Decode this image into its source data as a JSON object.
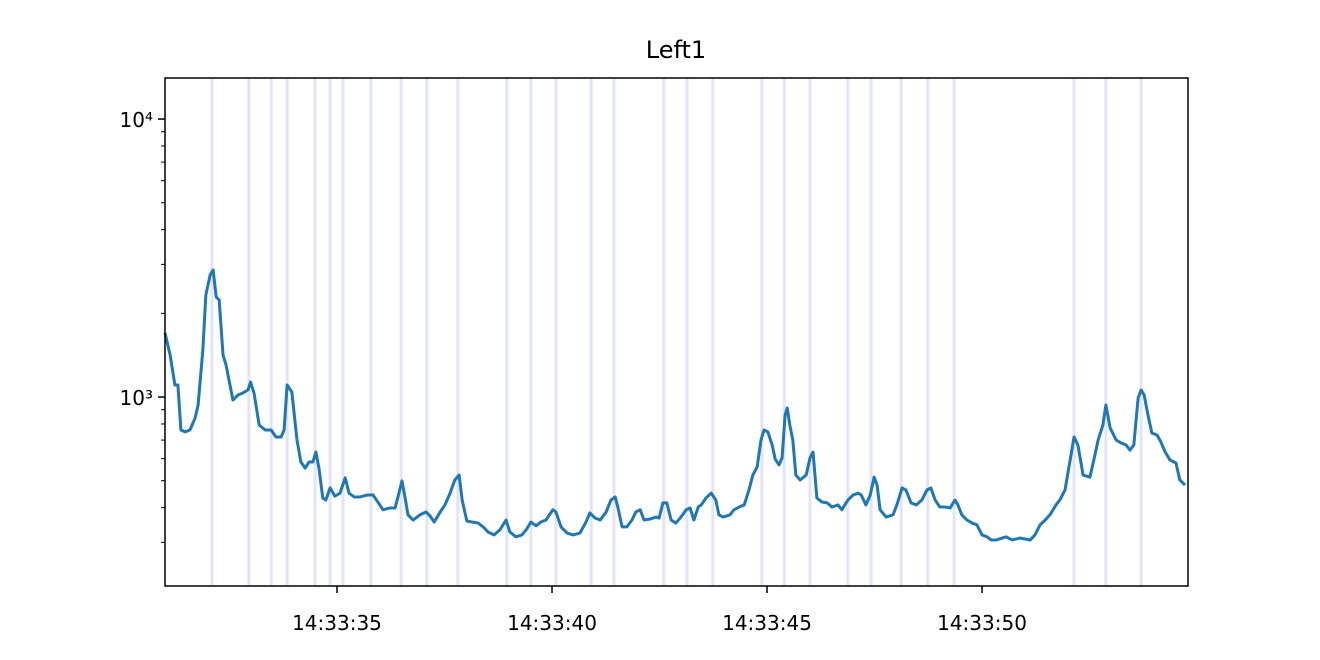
{
  "chart_data": {
    "type": "line",
    "title": "Left1",
    "color": "#1f77b4",
    "log_y": true,
    "xlim": [
      31.0,
      54.79
    ],
    "ylim": [
      209,
      14050
    ],
    "xticks": [
      {
        "value": 35,
        "label": "14:33:35"
      },
      {
        "value": 40,
        "label": "14:33:40"
      },
      {
        "value": 45,
        "label": "14:33:45"
      },
      {
        "value": 50,
        "label": "14:33:50"
      }
    ],
    "yticks": [
      {
        "value": 1000,
        "label": "10³"
      },
      {
        "value": 10000,
        "label": "10⁴"
      }
    ],
    "yminorticks": [
      300,
      400,
      500,
      600,
      700,
      800,
      900,
      2000,
      3000,
      4000,
      5000,
      6000,
      7000,
      8000,
      9000
    ],
    "vlines": [
      32.09,
      32.95,
      33.47,
      33.84,
      34.49,
      34.84,
      35.14,
      35.79,
      36.49,
      37.09,
      37.81,
      38.95,
      39.51,
      40.09,
      40.91,
      41.44,
      42.6,
      43.14,
      43.74,
      44.88,
      45.4,
      46.0,
      46.88,
      47.42,
      48.12,
      48.74,
      49.35,
      52.14,
      52.88,
      53.7
    ],
    "vline_color": "#e3e3fc",
    "x": [
      31.0,
      31.12,
      31.23,
      31.3,
      31.37,
      31.47,
      31.58,
      31.7,
      31.77,
      31.88,
      31.95,
      32.05,
      32.12,
      32.19,
      32.26,
      32.35,
      32.42,
      32.58,
      32.7,
      32.81,
      32.93,
      32.99,
      33.07,
      33.19,
      33.33,
      33.47,
      33.58,
      33.7,
      33.77,
      33.84,
      33.95,
      34.07,
      34.16,
      34.26,
      34.35,
      34.44,
      34.51,
      34.58,
      34.67,
      34.74,
      34.84,
      34.95,
      35.07,
      35.19,
      35.28,
      35.4,
      35.53,
      35.7,
      35.84,
      35.95,
      36.07,
      36.23,
      36.35,
      36.44,
      36.51,
      36.58,
      36.65,
      36.77,
      36.93,
      37.07,
      37.16,
      37.26,
      37.4,
      37.51,
      37.63,
      37.74,
      37.84,
      37.91,
      38.02,
      38.14,
      38.28,
      38.4,
      38.51,
      38.65,
      38.79,
      38.93,
      39.02,
      39.16,
      39.3,
      39.4,
      39.51,
      39.63,
      39.74,
      39.86,
      40.02,
      40.09,
      40.21,
      40.35,
      40.49,
      40.65,
      40.79,
      40.88,
      41.0,
      41.12,
      41.26,
      41.37,
      41.47,
      41.53,
      41.63,
      41.74,
      41.86,
      41.95,
      42.05,
      42.14,
      42.28,
      42.42,
      42.49,
      42.58,
      42.67,
      42.77,
      42.88,
      43.0,
      43.12,
      43.21,
      43.3,
      43.4,
      43.47,
      43.58,
      43.7,
      43.81,
      43.88,
      43.98,
      44.14,
      44.23,
      44.35,
      44.47,
      44.58,
      44.67,
      44.77,
      44.86,
      44.93,
      45.02,
      45.12,
      45.19,
      45.28,
      45.35,
      45.42,
      45.47,
      45.53,
      45.6,
      45.67,
      45.77,
      45.91,
      46.0,
      46.07,
      46.16,
      46.28,
      46.4,
      46.51,
      46.65,
      46.74,
      46.88,
      47.0,
      47.12,
      47.19,
      47.3,
      47.4,
      47.49,
      47.56,
      47.63,
      47.77,
      47.93,
      48.02,
      48.14,
      48.23,
      48.35,
      48.47,
      48.6,
      48.72,
      48.81,
      48.91,
      49.02,
      49.14,
      49.26,
      49.37,
      49.44,
      49.53,
      49.65,
      49.77,
      49.88,
      50.0,
      50.12,
      50.21,
      50.33,
      50.47,
      50.56,
      50.7,
      50.88,
      51.12,
      51.23,
      51.35,
      51.47,
      51.58,
      51.72,
      51.81,
      51.93,
      52.05,
      52.14,
      52.23,
      52.35,
      52.51,
      52.6,
      52.7,
      52.81,
      52.88,
      52.98,
      53.12,
      53.23,
      53.35,
      53.44,
      53.53,
      53.63,
      53.7,
      53.77,
      53.86,
      53.95,
      54.07,
      54.16,
      54.26,
      54.37,
      54.51,
      54.6,
      54.72
    ],
    "values": [
      1700,
      1415,
      1105,
      1105,
      761,
      749,
      761,
      840,
      936,
      1476,
      2330,
      2750,
      2862,
      2290,
      2235,
      1415,
      1303,
      975,
      1017,
      1034,
      1060,
      1132,
      1034,
      793,
      761,
      761,
      718,
      718,
      761,
      1105,
      1042,
      700,
      584,
      555,
      584,
      584,
      634,
      555,
      433,
      426,
      471,
      440,
      451,
      512,
      451,
      437,
      437,
      444,
      444,
      419,
      393,
      399,
      399,
      451,
      499,
      437,
      377,
      361,
      377,
      386,
      374,
      355,
      386,
      409,
      451,
      503,
      524,
      426,
      358,
      355,
      352,
      341,
      327,
      319,
      333,
      361,
      327,
      314,
      319,
      333,
      355,
      344,
      355,
      361,
      393,
      386,
      341,
      324,
      319,
      324,
      355,
      383,
      367,
      361,
      386,
      426,
      437,
      402,
      341,
      341,
      361,
      386,
      393,
      361,
      364,
      370,
      367,
      416,
      416,
      361,
      352,
      370,
      393,
      399,
      361,
      402,
      409,
      433,
      451,
      426,
      377,
      370,
      377,
      393,
      402,
      409,
      463,
      524,
      560,
      700,
      761,
      749,
      672,
      598,
      570,
      604,
      860,
      913,
      793,
      700,
      524,
      503,
      524,
      604,
      634,
      433,
      419,
      416,
      402,
      409,
      393,
      426,
      444,
      451,
      444,
      409,
      444,
      515,
      482,
      393,
      370,
      377,
      409,
      471,
      463,
      416,
      409,
      426,
      463,
      471,
      426,
      402,
      402,
      399,
      426,
      409,
      377,
      361,
      352,
      347,
      319,
      314,
      306,
      306,
      311,
      314,
      306,
      311,
      306,
      319,
      347,
      361,
      377,
      409,
      426,
      463,
      594,
      718,
      672,
      524,
      515,
      594,
      700,
      793,
      936,
      773,
      700,
      684,
      672,
      644,
      672,
      992,
      1060,
      1017,
      860,
      742,
      730,
      689,
      634,
      594,
      579,
      503,
      482
    ]
  }
}
